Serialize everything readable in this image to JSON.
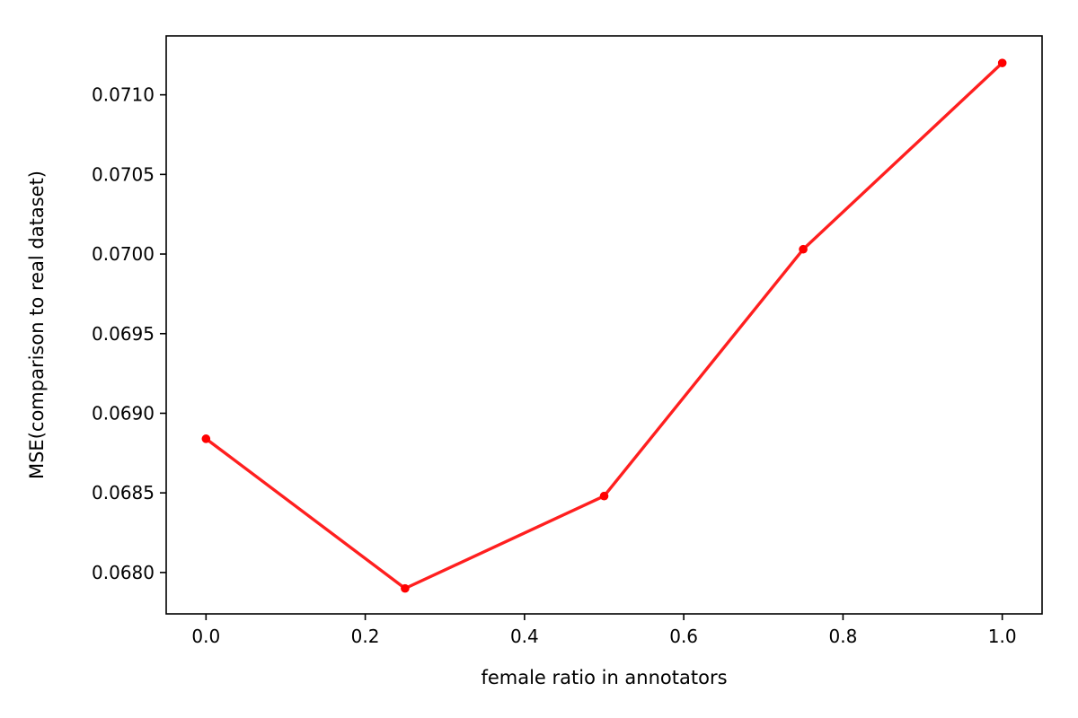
{
  "chart_data": {
    "type": "line",
    "title": "",
    "xlabel": "female ratio in annotators",
    "ylabel": "MSE(comparison to real dataset)",
    "x": [
      0.0,
      0.25,
      0.5,
      0.75,
      1.0
    ],
    "series": [
      {
        "values": [
          0.06884,
          0.0679,
          0.06848,
          0.07003,
          0.0712
        ],
        "color": "#ff0000"
      }
    ],
    "xlim": [
      -0.05,
      1.05
    ],
    "ylim": [
      0.06774,
      0.07137
    ],
    "xticks": [
      0.0,
      0.2,
      0.4,
      0.6,
      0.8,
      1.0
    ],
    "xtick_labels": [
      "0.0",
      "0.2",
      "0.4",
      "0.6",
      "0.8",
      "1.0"
    ],
    "yticks": [
      0.068,
      0.0685,
      0.069,
      0.0695,
      0.07,
      0.0705,
      0.071
    ],
    "ytick_labels": [
      "0.0680",
      "0.0685",
      "0.0690",
      "0.0695",
      "0.0700",
      "0.0705",
      "0.0710"
    ],
    "grid": false,
    "legend": "none"
  }
}
